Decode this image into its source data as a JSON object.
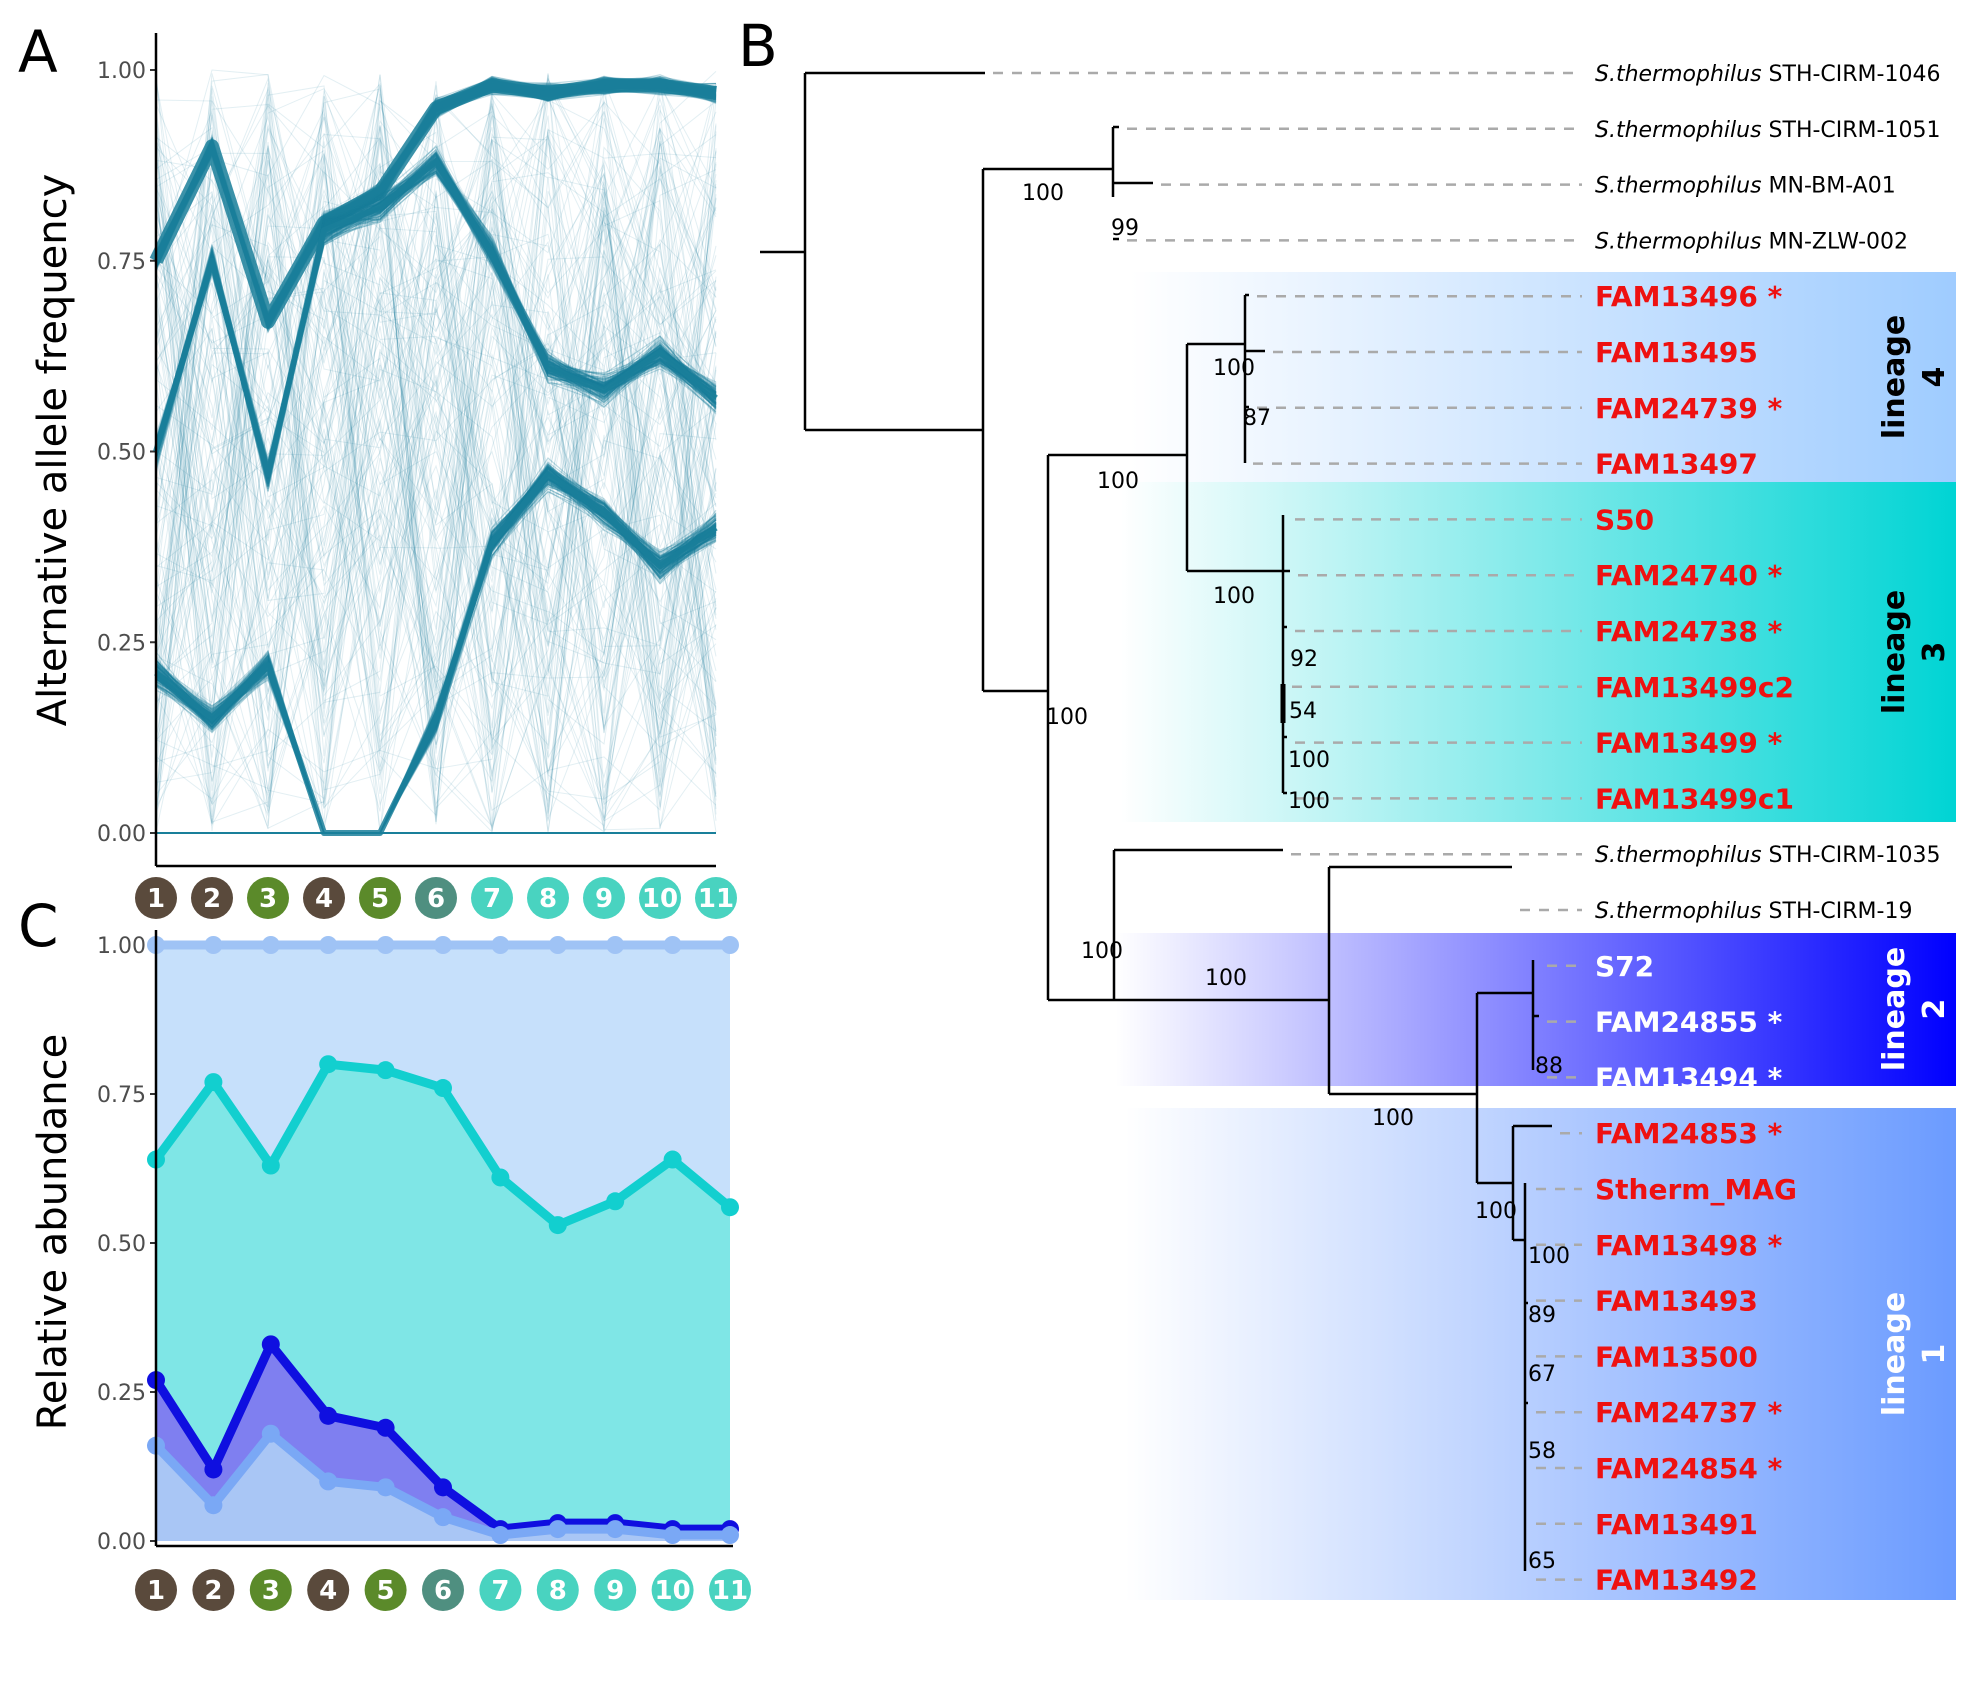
{
  "panels": {
    "a": "A",
    "b": "B",
    "c": "C"
  },
  "sample_badges": [
    {
      "label": "1",
      "color": "#5a4a3c"
    },
    {
      "label": "2",
      "color": "#5a4a3c"
    },
    {
      "label": "3",
      "color": "#5b8a2a"
    },
    {
      "label": "4",
      "color": "#5a4a3c"
    },
    {
      "label": "5",
      "color": "#5b8a2a"
    },
    {
      "label": "6",
      "color": "#4f8f80"
    },
    {
      "label": "7",
      "color": "#49d3c0"
    },
    {
      "label": "8",
      "color": "#49d3c0"
    },
    {
      "label": "9",
      "color": "#49d3c0"
    },
    {
      "label": "10",
      "color": "#49d3c0"
    },
    {
      "label": "11",
      "color": "#49d3c0"
    }
  ],
  "chart_data": [
    {
      "panel": "A",
      "type": "line",
      "ylabel": "Alternative allele frequency",
      "ylim": [
        0,
        1
      ],
      "yticks": [
        "0.00",
        "0.25",
        "0.50",
        "0.75",
        "1.00"
      ],
      "x": [
        "1",
        "2",
        "3",
        "4",
        "5",
        "6",
        "7",
        "8",
        "9",
        "10",
        "11"
      ],
      "line_color": "#1a7f9a",
      "series": [
        {
          "values": [
            0.75,
            0.9,
            0.67,
            0.8,
            0.84,
            0.95,
            0.98,
            0.97,
            0.98,
            0.98,
            0.97
          ]
        },
        {
          "values": [
            0.5,
            0.75,
            0.47,
            0.79,
            0.82,
            0.88,
            0.76,
            0.61,
            0.58,
            0.63,
            0.57
          ]
        },
        {
          "values": [
            0.21,
            0.15,
            0.22,
            0.0,
            0.0,
            0.15,
            0.38,
            0.47,
            0.42,
            0.35,
            0.4
          ]
        },
        {
          "values": [
            0.0,
            0.0,
            0.0,
            0.0,
            0.0,
            0.0,
            0.0,
            0.0,
            0.0,
            0.0,
            0.0
          ]
        }
      ]
    },
    {
      "panel": "C",
      "type": "area",
      "ylabel": "Relative abundance",
      "ylim": [
        0,
        1
      ],
      "yticks": [
        "0.00",
        "0.25",
        "0.50",
        "0.75",
        "1.00"
      ],
      "x": [
        "1",
        "2",
        "3",
        "4",
        "5",
        "6",
        "7",
        "8",
        "9",
        "10",
        "11"
      ],
      "series": [
        {
          "color": "#9fc3f5",
          "fill": "#c6e0fb",
          "values": [
            1,
            1,
            1,
            1,
            1,
            1,
            1,
            1,
            1,
            1,
            1
          ]
        },
        {
          "color": "#12cfcf",
          "fill": "#7fe6e6",
          "values": [
            0.64,
            0.77,
            0.63,
            0.8,
            0.79,
            0.76,
            0.61,
            0.53,
            0.57,
            0.64,
            0.56
          ]
        },
        {
          "color": "#0f0fe0",
          "fill": "#7f7ff0",
          "values": [
            0.27,
            0.12,
            0.33,
            0.21,
            0.19,
            0.09,
            0.02,
            0.03,
            0.03,
            0.02,
            0.02
          ]
        },
        {
          "color": "#7aa8f5",
          "fill": "#a9c6f5",
          "values": [
            0.16,
            0.06,
            0.18,
            0.1,
            0.09,
            0.04,
            0.01,
            0.02,
            0.02,
            0.01,
            0.01
          ]
        }
      ]
    }
  ],
  "tree": {
    "tips": [
      {
        "species": "S.thermophilus",
        "strain": "STH-CIRM-1046",
        "style": "plain"
      },
      {
        "species": "S.thermophilus",
        "strain": "STH-CIRM-1051",
        "style": "plain"
      },
      {
        "species": "S.thermophilus",
        "strain": "MN-BM-A01",
        "style": "plain"
      },
      {
        "species": "S.thermophilus",
        "strain": "MN-ZLW-002",
        "style": "plain"
      },
      {
        "label": "FAM13496 *",
        "style": "red"
      },
      {
        "label": "FAM13495",
        "style": "red"
      },
      {
        "label": "FAM24739 *",
        "style": "red"
      },
      {
        "label": "FAM13497",
        "style": "red"
      },
      {
        "label": "S50",
        "style": "red"
      },
      {
        "label": "FAM24740 *",
        "style": "red"
      },
      {
        "label": "FAM24738 *",
        "style": "red"
      },
      {
        "label": "FAM13499c2",
        "style": "red"
      },
      {
        "label": "FAM13499 *",
        "style": "red"
      },
      {
        "label": "FAM13499c1",
        "style": "red"
      },
      {
        "species": "S.thermophilus",
        "strain": "STH-CIRM-1035",
        "style": "plain"
      },
      {
        "species": "S.thermophilus",
        "strain": "STH-CIRM-19",
        "style": "plain"
      },
      {
        "label": "S72",
        "style": "white"
      },
      {
        "label": "FAM24855 *",
        "style": "white"
      },
      {
        "label": "FAM13494 *",
        "style": "white"
      },
      {
        "label": "FAM24853 *",
        "style": "red"
      },
      {
        "label": "Stherm_MAG",
        "style": "redsmall"
      },
      {
        "label": "FAM13498 *",
        "style": "red"
      },
      {
        "label": "FAM13493",
        "style": "red"
      },
      {
        "label": "FAM13500",
        "style": "red"
      },
      {
        "label": "FAM24737 *",
        "style": "red"
      },
      {
        "label": "FAM24854 *",
        "style": "red"
      },
      {
        "label": "FAM13491",
        "style": "red"
      },
      {
        "label": "FAM13492",
        "style": "red"
      }
    ],
    "bootstrap": [
      "100",
      "99",
      "100",
      "87",
      "100",
      "100",
      "92",
      "54",
      "100",
      "100",
      "100",
      "100",
      "100",
      "100",
      "88",
      "100",
      "100",
      "89",
      "67",
      "58",
      "65"
    ],
    "lineages": [
      {
        "name": "lineage",
        "number": "4",
        "color": "#9fccff"
      },
      {
        "name": "lineage",
        "number": "3",
        "color": "#00d4d4"
      },
      {
        "name": "lineage",
        "number": "2",
        "color": "#0000ff"
      },
      {
        "name": "lineage",
        "number": "1",
        "color": "#6b9bff"
      }
    ]
  }
}
